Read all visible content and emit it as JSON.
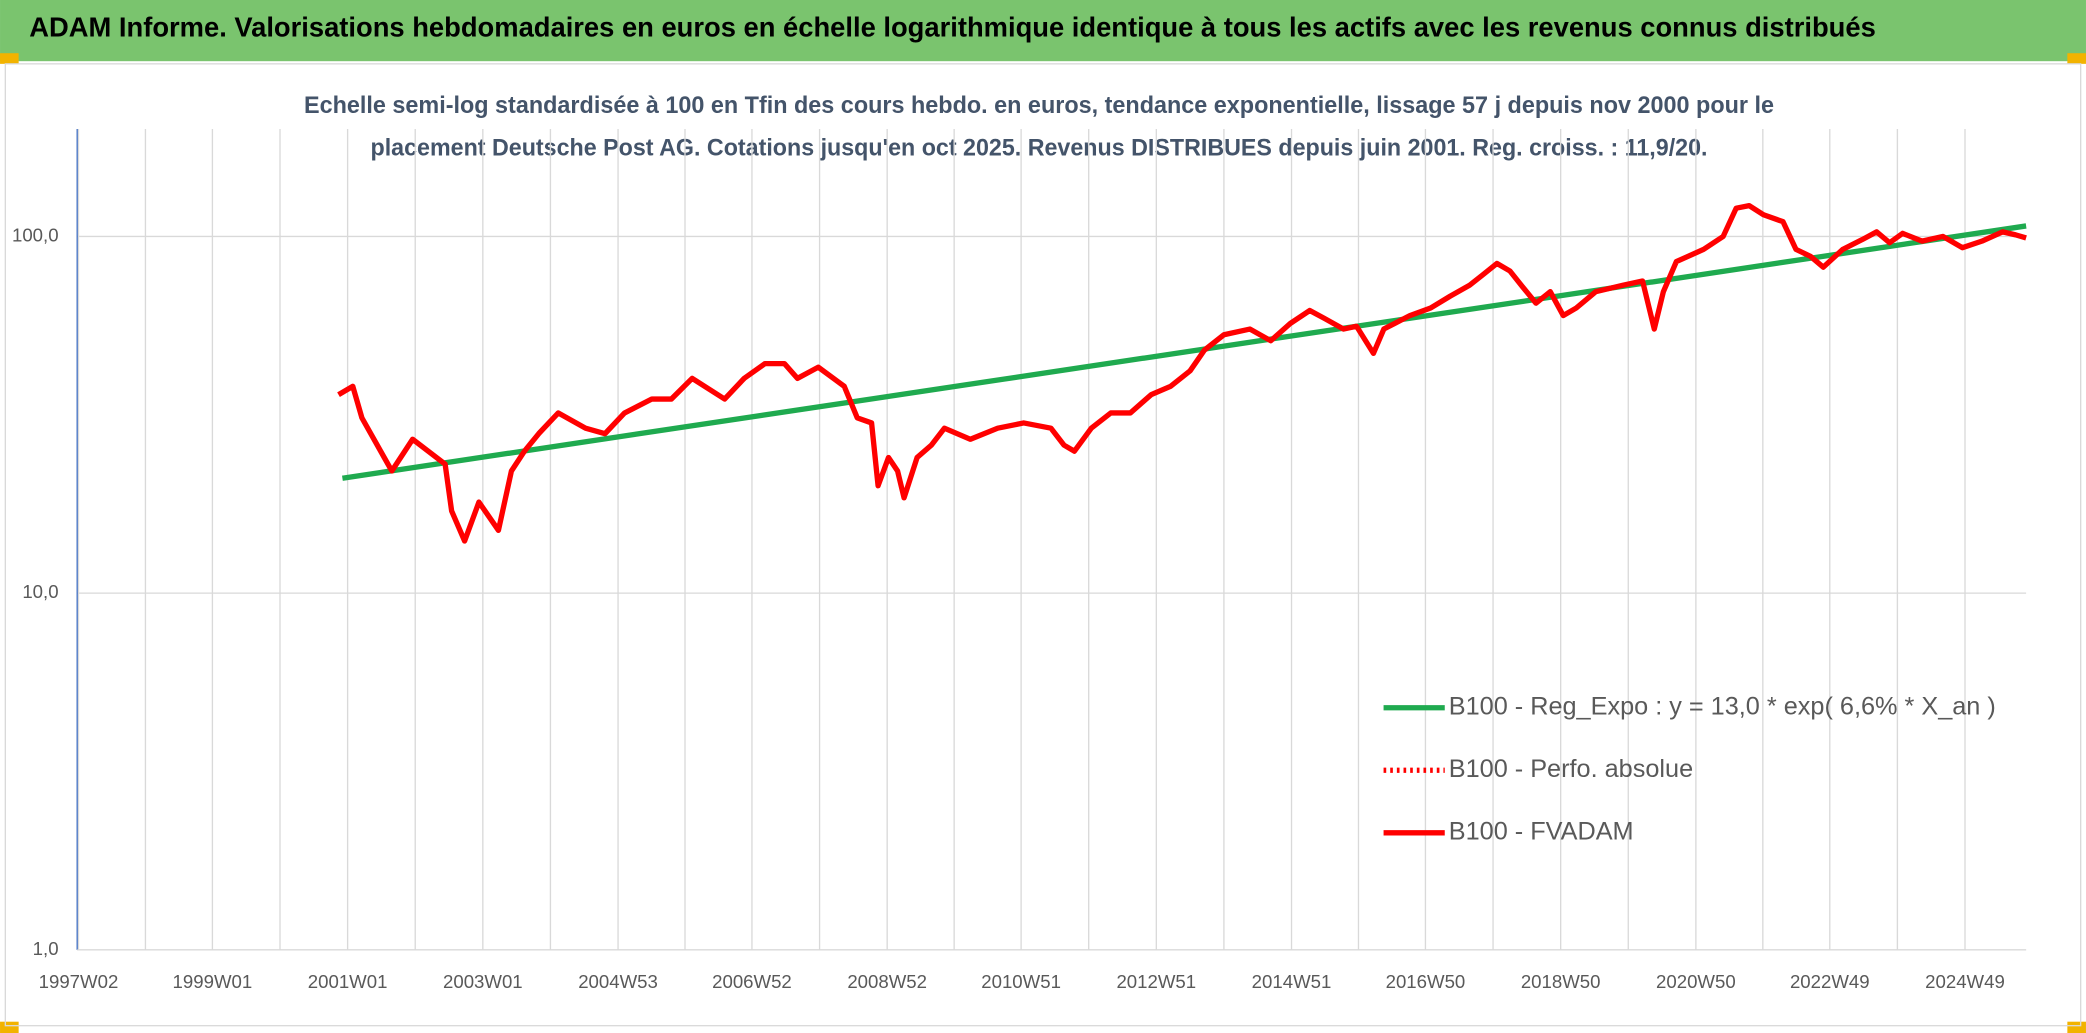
{
  "chart_data": {
    "type": "line",
    "title": "ADAM Informe. Valorisations hebdomadaires en euros en échelle logarithmique identique à tous les actifs avec les revenus connus distribués",
    "subtitle": [
      "Echelle semi-log standardisée à 100 en Tfin des cours hebdo. en euros, tendance exponentielle, lissage 57 j depuis nov 2000 pour le",
      "placement Deutsche Post AG. Cotations jusqu'en oct 2025. Revenus DISTRIBUES depuis juin 2001. Reg. croiss. : 11,9/20."
    ],
    "log_scale": true,
    "grid": true,
    "legend_position": "right",
    "xlim": [
      "1997W01",
      "2025W44"
    ],
    "xticks": [
      "1997W02",
      "1999W01",
      "2001W01",
      "2003W01",
      "2004W53",
      "2006W52",
      "2008W52",
      "2010W51",
      "2012W51",
      "2014W51",
      "2016W50",
      "2018W50",
      "2020W50",
      "2022W49",
      "2024W49"
    ],
    "ylim": [
      1,
      200
    ],
    "yticks": [
      {
        "value": 1,
        "label": "1,0"
      },
      {
        "value": 10,
        "label": "10,0"
      },
      {
        "value": 100,
        "label": "100,0"
      }
    ],
    "series": [
      {
        "name": "B100 - Reg_Expo : y = 13,0 * exp( 6,6% *  X_an )",
        "color": "#1faa4f",
        "style": "solid",
        "x": [
          "2000W49",
          "2025W44"
        ],
        "values": [
          21,
          107
        ]
      },
      {
        "name": "B100 - Perfo. absolue",
        "color": "#ff0000",
        "style": "dotted",
        "x": [],
        "values": []
      },
      {
        "name": "B100 - FVADAM",
        "color": "#ff0000",
        "style": "solid",
        "x": [
          "2000W46",
          "2001W05",
          "2001W12",
          "2001W35",
          "2001W51",
          "2002W24",
          "2002W29",
          "2002W39",
          "2002W50",
          "2003W13",
          "2003W23",
          "2003W33",
          "2003W44",
          "2004W07",
          "2004W28",
          "2004W43",
          "2005W06",
          "2005W27",
          "2005W42",
          "2006W06",
          "2006W31",
          "2006W46",
          "2007W10",
          "2007W25",
          "2007W35",
          "2007W51",
          "2008W19",
          "2008W29",
          "2008W40",
          "2008W45",
          "2009W01",
          "2009W08",
          "2009W13",
          "2009W23",
          "2009W34",
          "2009W44",
          "2010W12",
          "2010W33",
          "2011W01",
          "2011W22",
          "2011W32",
          "2011W40",
          "2012W01",
          "2012W16",
          "2012W31",
          "2012W47",
          "2013W10",
          "2013W25",
          "2013W36",
          "2013W51",
          "2014W19",
          "2014W35",
          "2014W50",
          "2015W13",
          "2015W24",
          "2015W39",
          "2015W49",
          "2016W10",
          "2016W18",
          "2016W38",
          "2017W02",
          "2017W17",
          "2017W32",
          "2017W42",
          "2018W01",
          "2018W11",
          "2018W21",
          "2018W31",
          "2018W42",
          "2018W52",
          "2019W10",
          "2019W25",
          "2019W46",
          "2020W09",
          "2020W18",
          "2020W25",
          "2020W35",
          "2021W04",
          "2021W19",
          "2021W29",
          "2021W39",
          "2021W50",
          "2022W13",
          "2022W23",
          "2022W34",
          "2022W44",
          "2023W07",
          "2023W22",
          "2023W33",
          "2023W43",
          "2024W01",
          "2024W16",
          "2024W32",
          "2024W47",
          "2025W10",
          "2025W26",
          "2025W36",
          "2025W44"
        ],
        "values": [
          36,
          38,
          31,
          22,
          27,
          23,
          17,
          14,
          18,
          15,
          22,
          25,
          28,
          32,
          29,
          28,
          32,
          35,
          35,
          40,
          35,
          40,
          44,
          44,
          40,
          43,
          38,
          31,
          30,
          20,
          24,
          22,
          18.5,
          24,
          26,
          29,
          27,
          29,
          30,
          29,
          26,
          25,
          29,
          32,
          32,
          36,
          38,
          42,
          48,
          53,
          55,
          51,
          57,
          62,
          59,
          55,
          56,
          47,
          55,
          60,
          63,
          68,
          73,
          78,
          84,
          80,
          72,
          65,
          70,
          60,
          63,
          70,
          73,
          75,
          55,
          70,
          85,
          92,
          100,
          120,
          122,
          115,
          110,
          92,
          88,
          82,
          92,
          98,
          103,
          96,
          102,
          97,
          100,
          93,
          97,
          103,
          101,
          99
        ]
      }
    ]
  }
}
